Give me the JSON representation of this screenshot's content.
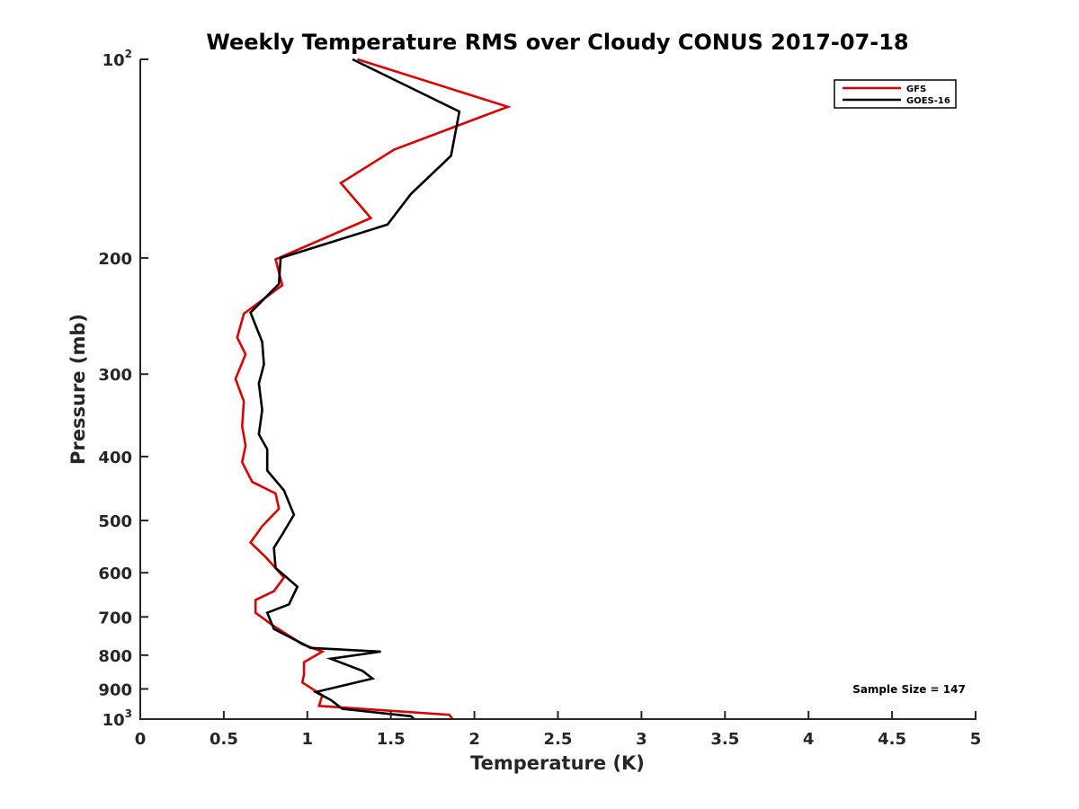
{
  "chart_data": {
    "type": "line",
    "title": "Weekly Temperature RMS over Cloudy CONUS 2017-07-18",
    "xlabel": "Temperature (K)",
    "ylabel": "Pressure (mb)",
    "xlim": [
      0,
      5
    ],
    "ylim": [
      100,
      1000
    ],
    "y_scale": "log",
    "y_reversed": true,
    "x_ticks": [
      0,
      0.5,
      1,
      1.5,
      2,
      2.5,
      3,
      3.5,
      4,
      4.5,
      5
    ],
    "x_tick_labels": [
      "0",
      "0.5",
      "1",
      "1.5",
      "2",
      "2.5",
      "3",
      "3.5",
      "4",
      "4.5",
      "5"
    ],
    "y_ticks": [
      {
        "value": 100,
        "base": "10",
        "exp": "2"
      },
      {
        "value": 200,
        "label": "200"
      },
      {
        "value": 300,
        "label": "300"
      },
      {
        "value": 400,
        "label": "400"
      },
      {
        "value": 500,
        "label": "500"
      },
      {
        "value": 600,
        "label": "600"
      },
      {
        "value": 700,
        "label": "700"
      },
      {
        "value": 800,
        "label": "800"
      },
      {
        "value": 900,
        "label": "900"
      },
      {
        "value": 1000,
        "base": "10",
        "exp": "3"
      }
    ],
    "grid": false,
    "legend_position": "top-right",
    "annotation": "Sample Size = 147",
    "series": [
      {
        "name": "GFS",
        "color": "#dd0000",
        "points": [
          [
            1.3,
            100
          ],
          [
            2.2,
            118
          ],
          [
            1.52,
            137
          ],
          [
            1.2,
            154
          ],
          [
            1.38,
            174
          ],
          [
            0.81,
            201
          ],
          [
            0.85,
            220
          ],
          [
            0.62,
            243
          ],
          [
            0.58,
            264
          ],
          [
            0.63,
            280
          ],
          [
            0.57,
            305
          ],
          [
            0.62,
            330
          ],
          [
            0.61,
            360
          ],
          [
            0.63,
            385
          ],
          [
            0.61,
            408
          ],
          [
            0.67,
            437
          ],
          [
            0.81,
            455
          ],
          [
            0.83,
            480
          ],
          [
            0.73,
            510
          ],
          [
            0.66,
            540
          ],
          [
            0.75,
            568
          ],
          [
            0.86,
            610
          ],
          [
            0.8,
            640
          ],
          [
            0.69,
            660
          ],
          [
            0.69,
            690
          ],
          [
            0.79,
            720
          ],
          [
            0.97,
            770
          ],
          [
            1.09,
            790
          ],
          [
            0.98,
            820
          ],
          [
            0.98,
            855
          ],
          [
            0.97,
            880
          ],
          [
            1.09,
            920
          ],
          [
            1.07,
            955
          ],
          [
            1.85,
            985
          ],
          [
            1.87,
            1000
          ]
        ]
      },
      {
        "name": "GOES-16",
        "color": "#000000",
        "points": [
          [
            1.27,
            100
          ],
          [
            1.91,
            120
          ],
          [
            1.86,
            140
          ],
          [
            1.62,
            160
          ],
          [
            1.48,
            178
          ],
          [
            0.84,
            200
          ],
          [
            0.83,
            219
          ],
          [
            0.66,
            242
          ],
          [
            0.73,
            268
          ],
          [
            0.74,
            290
          ],
          [
            0.71,
            310
          ],
          [
            0.73,
            340
          ],
          [
            0.71,
            370
          ],
          [
            0.76,
            390
          ],
          [
            0.76,
            420
          ],
          [
            0.86,
            450
          ],
          [
            0.92,
            490
          ],
          [
            0.85,
            525
          ],
          [
            0.8,
            550
          ],
          [
            0.81,
            590
          ],
          [
            0.94,
            630
          ],
          [
            0.89,
            670
          ],
          [
            0.76,
            690
          ],
          [
            0.8,
            730
          ],
          [
            1.02,
            780
          ],
          [
            1.44,
            790
          ],
          [
            1.14,
            810
          ],
          [
            1.33,
            845
          ],
          [
            1.39,
            868
          ],
          [
            1.05,
            910
          ],
          [
            1.14,
            935
          ],
          [
            1.21,
            965
          ],
          [
            1.62,
            990
          ],
          [
            1.64,
            1000
          ]
        ]
      }
    ]
  }
}
